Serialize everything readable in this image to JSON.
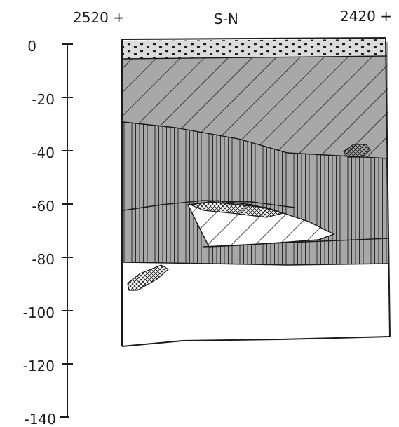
{
  "header": {
    "left_label": "2520 +",
    "center_label": "S-N",
    "right_label": "2420 +"
  },
  "depth_axis": {
    "ticks": [
      "0",
      "-20",
      "-40",
      "-60",
      "-80",
      "-100",
      "-120",
      "-140"
    ]
  },
  "colors": {
    "ink": "#1b1b1b",
    "paper": "#ffffff",
    "shading": "#a8a8a8",
    "light_shading": "#dcdcdc"
  }
}
